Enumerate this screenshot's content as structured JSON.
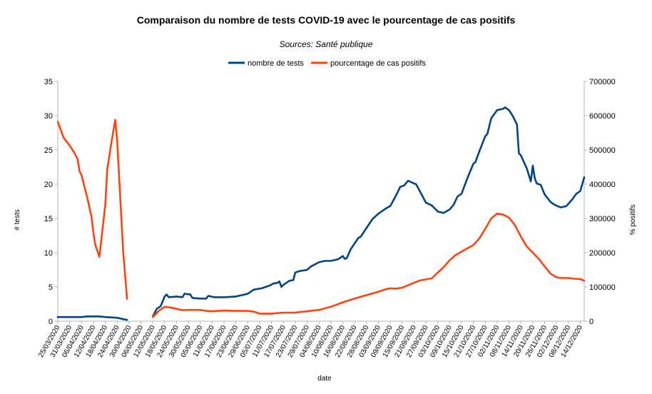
{
  "chart_data": {
    "type": "line",
    "title": "Comparaison du nombre de tests COVID-19 avec le pourcentage de cas positifs",
    "subtitle": "Sources: Santé publique",
    "xlabel": "date",
    "ylabel_left": "# tests",
    "ylabel_right": "% positifs",
    "ylim_left": [
      0,
      35
    ],
    "ylim_right": [
      0,
      700000
    ],
    "yticks_left": [
      "0",
      "5",
      "10",
      "15",
      "20",
      "25",
      "30",
      "35"
    ],
    "yticks_right": [
      "0",
      "100000",
      "200000",
      "300000",
      "400000",
      "500000",
      "600000",
      "700000"
    ],
    "grid": false,
    "legend_position": "top",
    "x_start": "25/03/2020",
    "x_end": "16/12/2020",
    "x_tick_labels": [
      "25/03/2020",
      "31/03/2020",
      "06/04/2020",
      "12/04/2020",
      "18/04/2020",
      "24/04/2020",
      "30/04/2020",
      "06/05/2020",
      "12/05/2020",
      "18/05/2020",
      "24/05/2020",
      "30/05/2020",
      "05/06/2020",
      "11/06/2020",
      "17/06/2020",
      "23/06/2020",
      "29/06/2020",
      "05/07/2020",
      "11/07/2020",
      "17/07/2020",
      "23/07/2020",
      "29/07/2020",
      "04/08/2020",
      "10/08/2020",
      "16/08/2020",
      "22/08/2020",
      "28/08/2020",
      "03/09/2020",
      "09/09/2020",
      "15/09/2020",
      "21/09/2020",
      "27/09/2020",
      "03/10/2020",
      "09/10/2020",
      "15/10/2020",
      "21/10/2020",
      "27/10/2020",
      "02/11/2020",
      "08/11/2020",
      "14/11/2020",
      "20/11/2020",
      "26/11/2020",
      "02/12/2020",
      "08/12/2020",
      "14/12/2020"
    ],
    "series": [
      {
        "name": "nombre de tests",
        "axis": "left",
        "color": "#004586",
        "segments": [
          [
            [
              "25/03/2020",
              0.6
            ],
            [
              "31/03/2020",
              0.6
            ],
            [
              "06/04/2020",
              0.6
            ],
            [
              "09/04/2020",
              0.7
            ],
            [
              "12/04/2020",
              0.7
            ],
            [
              "15/04/2020",
              0.7
            ],
            [
              "18/04/2020",
              0.6
            ],
            [
              "24/04/2020",
              0.5
            ],
            [
              "27/04/2020",
              0.3
            ],
            [
              "29/04/2020",
              0.2
            ]
          ],
          [
            [
              "12/05/2020",
              0.7
            ],
            [
              "14/05/2020",
              1.8
            ],
            [
              "16/05/2020",
              2.2
            ],
            [
              "18/05/2020",
              3.6
            ],
            [
              "19/05/2020",
              3.9
            ],
            [
              "20/05/2020",
              3.5
            ],
            [
              "24/05/2020",
              3.6
            ],
            [
              "27/05/2020",
              3.5
            ],
            [
              "28/05/2020",
              4.0
            ],
            [
              "31/05/2020",
              3.9
            ],
            [
              "01/06/2020",
              3.4
            ],
            [
              "05/06/2020",
              3.3
            ],
            [
              "08/06/2020",
              3.3
            ],
            [
              "09/06/2020",
              3.7
            ],
            [
              "12/06/2020",
              3.5
            ],
            [
              "17/06/2020",
              3.5
            ],
            [
              "23/06/2020",
              3.6
            ],
            [
              "29/06/2020",
              4.0
            ],
            [
              "02/07/2020",
              4.6
            ],
            [
              "06/07/2020",
              4.8
            ],
            [
              "10/07/2020",
              5.2
            ],
            [
              "12/07/2020",
              5.5
            ],
            [
              "14/07/2020",
              5.6
            ],
            [
              "15/07/2020",
              5.8
            ],
            [
              "16/07/2020",
              5.0
            ],
            [
              "17/07/2020",
              5.3
            ],
            [
              "20/07/2020",
              5.9
            ],
            [
              "22/07/2020",
              6.0
            ],
            [
              "23/07/2020",
              7.1
            ],
            [
              "25/07/2020",
              7.3
            ],
            [
              "29/07/2020",
              7.5
            ],
            [
              "31/07/2020",
              8.0
            ],
            [
              "04/08/2020",
              8.6
            ],
            [
              "07/08/2020",
              8.8
            ],
            [
              "10/08/2020",
              8.8
            ],
            [
              "13/08/2020",
              9.0
            ],
            [
              "14/08/2020",
              9.1
            ],
            [
              "16/08/2020",
              9.5
            ],
            [
              "17/08/2020",
              9.1
            ],
            [
              "18/08/2020",
              9.2
            ],
            [
              "20/08/2020",
              10.5
            ],
            [
              "24/08/2020",
              12.2
            ],
            [
              "25/08/2020",
              12.3
            ],
            [
              "28/08/2020",
              13.6
            ],
            [
              "31/08/2020",
              14.9
            ],
            [
              "03/09/2020",
              15.7
            ],
            [
              "07/09/2020",
              16.5
            ],
            [
              "09/09/2020",
              16.8
            ],
            [
              "12/09/2020",
              18.4
            ],
            [
              "14/09/2020",
              19.6
            ],
            [
              "16/09/2020",
              19.8
            ],
            [
              "18/09/2020",
              20.5
            ],
            [
              "21/09/2020",
              20.1
            ],
            [
              "22/09/2020",
              20.0
            ],
            [
              "25/09/2020",
              18.4
            ],
            [
              "27/09/2020",
              17.3
            ],
            [
              "30/09/2020",
              16.9
            ],
            [
              "03/10/2020",
              16.0
            ],
            [
              "06/10/2020",
              15.8
            ],
            [
              "09/10/2020",
              16.3
            ],
            [
              "11/10/2020",
              17.0
            ],
            [
              "13/10/2020",
              18.2
            ],
            [
              "15/10/2020",
              18.6
            ],
            [
              "18/10/2020",
              20.9
            ],
            [
              "21/10/2020",
              23.0
            ],
            [
              "22/10/2020",
              23.2
            ],
            [
              "24/10/2020",
              24.8
            ],
            [
              "27/10/2020",
              27.0
            ],
            [
              "28/10/2020",
              27.3
            ],
            [
              "30/10/2020",
              29.6
            ],
            [
              "02/11/2020",
              30.8
            ],
            [
              "05/11/2020",
              31.0
            ],
            [
              "06/11/2020",
              31.2
            ],
            [
              "08/11/2020",
              30.8
            ],
            [
              "10/11/2020",
              29.9
            ],
            [
              "12/11/2020",
              28.7
            ],
            [
              "13/11/2020",
              24.5
            ],
            [
              "14/11/2020",
              24.2
            ],
            [
              "16/11/2020",
              22.9
            ],
            [
              "17/11/2020",
              22.3
            ],
            [
              "19/11/2020",
              20.4
            ],
            [
              "20/11/2020",
              22.7
            ],
            [
              "21/11/2020",
              20.9
            ],
            [
              "22/11/2020",
              20.1
            ],
            [
              "24/11/2020",
              19.9
            ],
            [
              "26/11/2020",
              18.5
            ],
            [
              "29/11/2020",
              17.4
            ],
            [
              "01/12/2020",
              17.0
            ],
            [
              "04/12/2020",
              16.6
            ],
            [
              "07/12/2020",
              16.8
            ],
            [
              "10/12/2020",
              17.8
            ],
            [
              "12/12/2020",
              18.6
            ],
            [
              "14/12/2020",
              19.0
            ],
            [
              "16/12/2020",
              21.0
            ]
          ]
        ]
      },
      {
        "name": "pourcentage de cas positifs",
        "axis": "right",
        "color": "#ff420e",
        "segments": [
          [
            [
              "25/03/2020",
              582000
            ],
            [
              "28/03/2020",
              535000
            ],
            [
              "31/03/2020",
              513000
            ],
            [
              "02/04/2020",
              495000
            ],
            [
              "04/04/2020",
              474000
            ],
            [
              "05/04/2020",
              438000
            ],
            [
              "06/04/2020",
              426000
            ],
            [
              "09/04/2020",
              358000
            ],
            [
              "11/04/2020",
              305000
            ],
            [
              "12/04/2020",
              258000
            ],
            [
              "13/04/2020",
              222000
            ],
            [
              "15/04/2020",
              188000
            ],
            [
              "18/04/2020",
              340000
            ],
            [
              "19/04/2020",
              445000
            ],
            [
              "21/04/2020",
              518000
            ],
            [
              "23/04/2020",
              588000
            ],
            [
              "24/04/2020",
              528000
            ],
            [
              "27/04/2020",
              205000
            ],
            [
              "29/04/2020",
              65000
            ]
          ],
          [
            [
              "12/05/2020",
              12000
            ],
            [
              "15/05/2020",
              30000
            ],
            [
              "18/05/2020",
              42000
            ],
            [
              "21/05/2020",
              40000
            ],
            [
              "24/05/2020",
              36000
            ],
            [
              "27/05/2020",
              32000
            ],
            [
              "30/05/2020",
              33000
            ],
            [
              "05/06/2020",
              33000
            ],
            [
              "08/06/2020",
              30000
            ],
            [
              "11/06/2020",
              29000
            ],
            [
              "17/06/2020",
              31000
            ],
            [
              "23/06/2020",
              30000
            ],
            [
              "29/06/2020",
              30000
            ],
            [
              "02/07/2020",
              28000
            ],
            [
              "05/07/2020",
              22000
            ],
            [
              "11/07/2020",
              22000
            ],
            [
              "17/07/2020",
              25000
            ],
            [
              "23/07/2020",
              25000
            ],
            [
              "29/07/2020",
              29000
            ],
            [
              "04/08/2020",
              33000
            ],
            [
              "10/08/2020",
              42000
            ],
            [
              "16/08/2020",
              55000
            ],
            [
              "22/08/2020",
              66000
            ],
            [
              "28/08/2020",
              76000
            ],
            [
              "03/09/2020",
              86000
            ],
            [
              "06/09/2020",
              92000
            ],
            [
              "09/09/2020",
              96000
            ],
            [
              "12/09/2020",
              95000
            ],
            [
              "15/09/2020",
              98000
            ],
            [
              "21/09/2020",
              112000
            ],
            [
              "24/09/2020",
              119000
            ],
            [
              "27/09/2020",
              122000
            ],
            [
              "30/09/2020",
              125000
            ],
            [
              "03/10/2020",
              142000
            ],
            [
              "06/10/2020",
              158000
            ],
            [
              "09/10/2020",
              178000
            ],
            [
              "12/10/2020",
              193000
            ],
            [
              "15/10/2020",
              203000
            ],
            [
              "18/10/2020",
              213000
            ],
            [
              "21/10/2020",
              222000
            ],
            [
              "24/10/2020",
              242000
            ],
            [
              "27/10/2020",
              270000
            ],
            [
              "30/10/2020",
              300000
            ],
            [
              "02/11/2020",
              314000
            ],
            [
              "05/11/2020",
              311000
            ],
            [
              "08/11/2020",
              302000
            ],
            [
              "11/11/2020",
              280000
            ],
            [
              "14/11/2020",
              247000
            ],
            [
              "17/11/2020",
              218000
            ],
            [
              "20/11/2020",
              200000
            ],
            [
              "23/11/2020",
              182000
            ],
            [
              "26/11/2020",
              160000
            ],
            [
              "29/11/2020",
              139000
            ],
            [
              "02/12/2020",
              128000
            ],
            [
              "05/12/2020",
              126000
            ],
            [
              "08/12/2020",
              126000
            ],
            [
              "11/12/2020",
              124000
            ],
            [
              "14/12/2020",
              123000
            ],
            [
              "16/12/2020",
              118000
            ]
          ]
        ]
      }
    ]
  }
}
